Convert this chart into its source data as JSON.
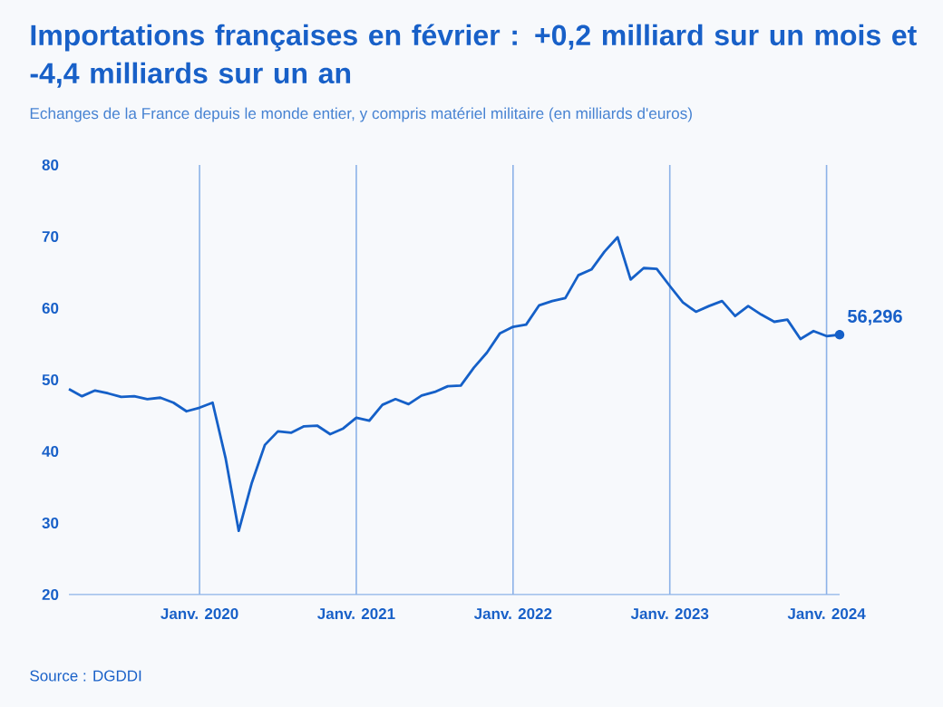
{
  "chart_data": {
    "type": "line",
    "title": "Importations françaises en février : +0,2 milliard sur un mois et -4,4 milliards sur un an",
    "subtitle": "Echanges de la France depuis le monde entier, y compris matériel militaire (en milliards d'euros)",
    "x": [
      "2019-03",
      "2019-04",
      "2019-05",
      "2019-06",
      "2019-07",
      "2019-08",
      "2019-09",
      "2019-10",
      "2019-11",
      "2019-12",
      "2020-01",
      "2020-02",
      "2020-03",
      "2020-04",
      "2020-05",
      "2020-06",
      "2020-07",
      "2020-08",
      "2020-09",
      "2020-10",
      "2020-11",
      "2020-12",
      "2021-01",
      "2021-02",
      "2021-03",
      "2021-04",
      "2021-05",
      "2021-06",
      "2021-07",
      "2021-08",
      "2021-09",
      "2021-10",
      "2021-11",
      "2021-12",
      "2022-01",
      "2022-02",
      "2022-03",
      "2022-04",
      "2022-05",
      "2022-06",
      "2022-07",
      "2022-08",
      "2022-09",
      "2022-10",
      "2022-11",
      "2022-12",
      "2023-01",
      "2023-02",
      "2023-03",
      "2023-04",
      "2023-05",
      "2023-06",
      "2023-07",
      "2023-08",
      "2023-09",
      "2023-10",
      "2023-11",
      "2023-12",
      "2024-01",
      "2024-02"
    ],
    "values": [
      48.7,
      47.7,
      48.5,
      48.1,
      47.6,
      47.7,
      47.3,
      47.5,
      46.8,
      45.6,
      46.1,
      46.8,
      39.0,
      28.9,
      35.6,
      40.9,
      42.8,
      42.6,
      43.5,
      43.6,
      42.4,
      43.2,
      44.7,
      44.3,
      46.5,
      47.3,
      46.6,
      47.8,
      48.3,
      49.1,
      49.2,
      51.7,
      53.8,
      56.5,
      57.4,
      57.7,
      60.4,
      61.0,
      61.4,
      64.6,
      65.4,
      67.9,
      69.9,
      64.0,
      65.6,
      65.5,
      63.1,
      60.8,
      59.5,
      60.3,
      61.0,
      58.9,
      60.3,
      59.1,
      58.1,
      58.4,
      55.7,
      56.8,
      56.1,
      56.296
    ],
    "color": "#1560c8",
    "xticks": [
      {
        "value": "2020-01",
        "label": "Janv. 2020"
      },
      {
        "value": "2021-01",
        "label": "Janv. 2021"
      },
      {
        "value": "2022-01",
        "label": "Janv. 2022"
      },
      {
        "value": "2023-01",
        "label": "Janv. 2023"
      },
      {
        "value": "2024-01",
        "label": "Janv. 2024"
      }
    ],
    "xlim": [
      "2019-03",
      "2024-02"
    ],
    "ylim": [
      20,
      80
    ],
    "yticks": [
      20,
      30,
      40,
      50,
      60,
      70,
      80
    ],
    "grid": "x",
    "annotations": [
      {
        "text": "56,296",
        "x": "2024-02",
        "y": 56.296
      },
      "Source : DGDDI"
    ]
  }
}
